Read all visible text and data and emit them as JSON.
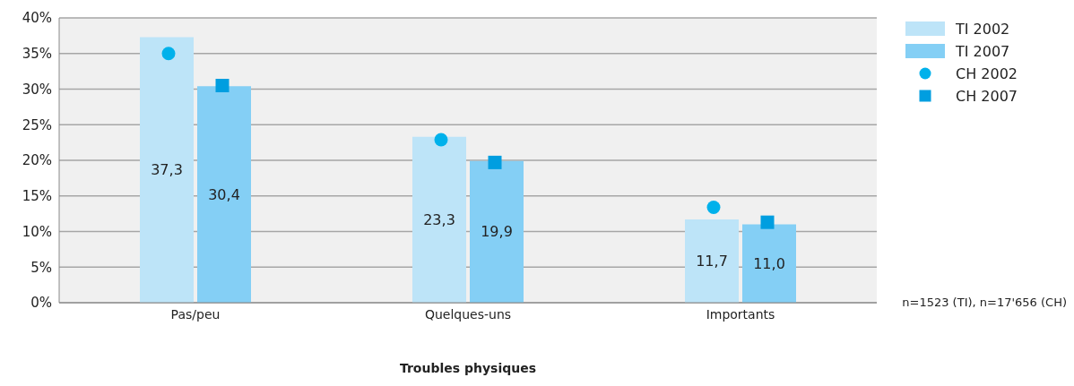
{
  "chart_data": {
    "type": "bar",
    "xlabel": "Troubles physiques",
    "categories": [
      "Pas/peu",
      "Quelques-uns",
      "Importants"
    ],
    "series": [
      {
        "name": "TI 2002",
        "color": "#bde4f8",
        "values": [
          37.3,
          23.3,
          11.7
        ],
        "value_labels": [
          "37,3",
          "23,3",
          "11,7"
        ]
      },
      {
        "name": "TI 2007",
        "color": "#84cff5",
        "values": [
          30.4,
          19.9,
          11.0
        ],
        "value_labels": [
          "30,4",
          "19,9",
          "11,0"
        ]
      },
      {
        "name": "CH 2002",
        "type": "scatter",
        "marker": "circle",
        "color": "#00b1eb",
        "x": [
          "Pas/peu",
          "Quelques-uns",
          "Importants"
        ],
        "values": [
          35.0,
          22.9,
          13.4
        ]
      },
      {
        "name": "CH 2007",
        "type": "scatter",
        "marker": "square",
        "color": "#009ee0",
        "x": [
          "Pas/peu",
          "Quelques-uns",
          "Importants"
        ],
        "values": [
          30.5,
          19.7,
          11.3
        ]
      }
    ],
    "ylim": [
      0,
      40
    ],
    "yticks": [
      {
        "value": 0,
        "label": "0%"
      },
      {
        "value": 5,
        "label": "5%"
      },
      {
        "value": 10,
        "label": "10%"
      },
      {
        "value": 15,
        "label": "15%"
      },
      {
        "value": 20,
        "label": "20%"
      },
      {
        "value": 25,
        "label": "25%"
      },
      {
        "value": 30,
        "label": "30%"
      },
      {
        "value": 35,
        "label": "35%"
      },
      {
        "value": 40,
        "label": "40%"
      }
    ],
    "grid": "y",
    "legend": "right",
    "annotations": [
      "n=1523 (TI), n=17'656 (CH)"
    ]
  }
}
